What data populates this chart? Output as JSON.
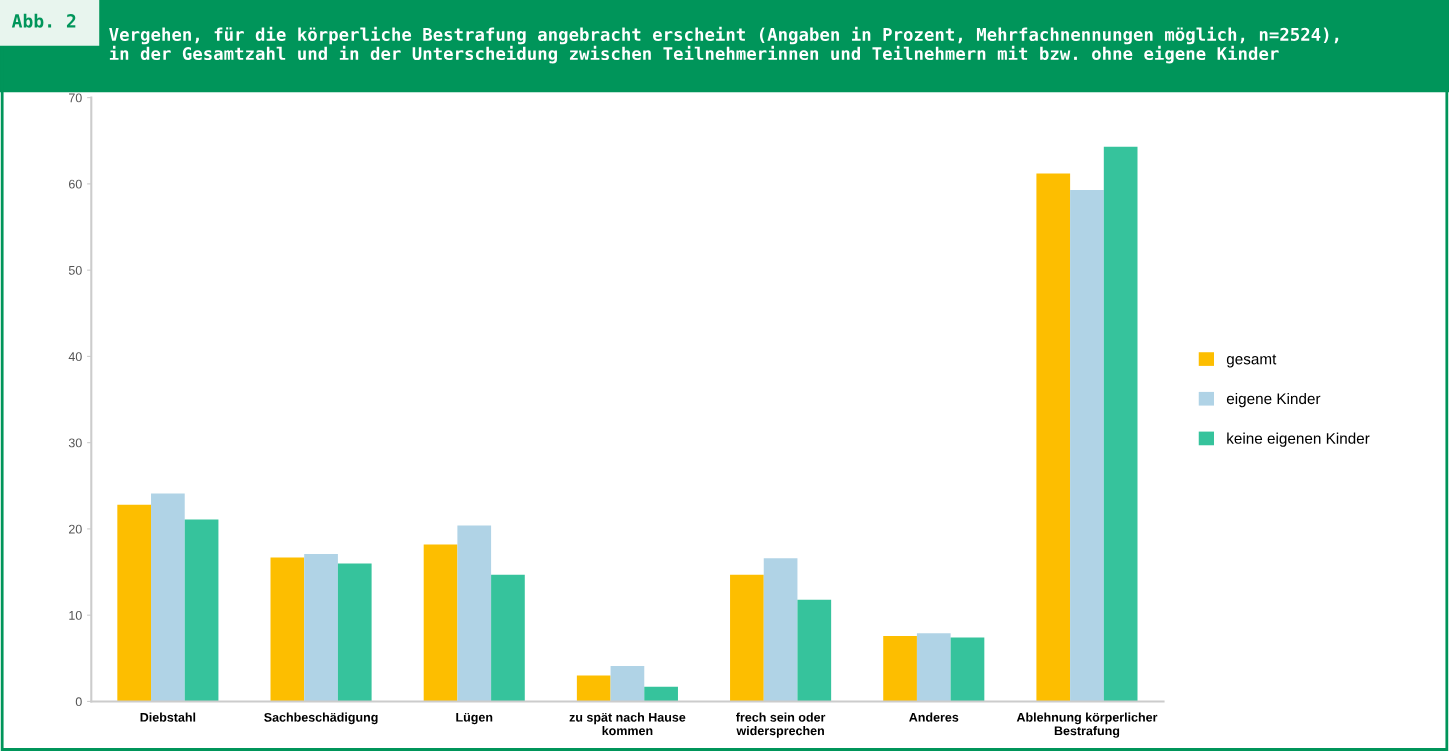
{
  "chart_data": {
    "type": "bar",
    "title": "Abb. 2",
    "subtitle": "Vergehen, für die körperliche Bestrafung angebracht erscheint (Angaben in Prozent, Mehrfachnennungen möglich, n=2524),\nin der Gesamtzahl und in der Unterscheidung zwischen Teilnehmerinnen und Teilnehmern mit bzw. ohne eigene Kinder",
    "categories": [
      "Diebstahl",
      "Sachbeschädigung",
      "Lügen",
      "zu spät nach Hause\nkommen",
      "frech sein oder\nwidersprechen",
      "Anderes",
      "Ablehnung körperlicher\nBestrafung"
    ],
    "series": [
      {
        "name": "gesamt",
        "color": "#fdbe00",
        "values": [
          22.8,
          16.7,
          18.2,
          3.0,
          14.7,
          7.6,
          61.2
        ]
      },
      {
        "name": "eigene Kinder",
        "color": "#b0d3e6",
        "values": [
          24.1,
          17.1,
          20.4,
          4.1,
          16.6,
          7.9,
          59.3
        ]
      },
      {
        "name": "keine eigenen Kinder",
        "color": "#36c39c",
        "values": [
          21.1,
          16.0,
          14.7,
          1.7,
          11.8,
          7.4,
          64.3
        ]
      }
    ],
    "ylim": [
      0,
      70
    ],
    "yticks": [
      0,
      10,
      20,
      30,
      40,
      50,
      60,
      70
    ],
    "grid": false,
    "legend": "right"
  }
}
